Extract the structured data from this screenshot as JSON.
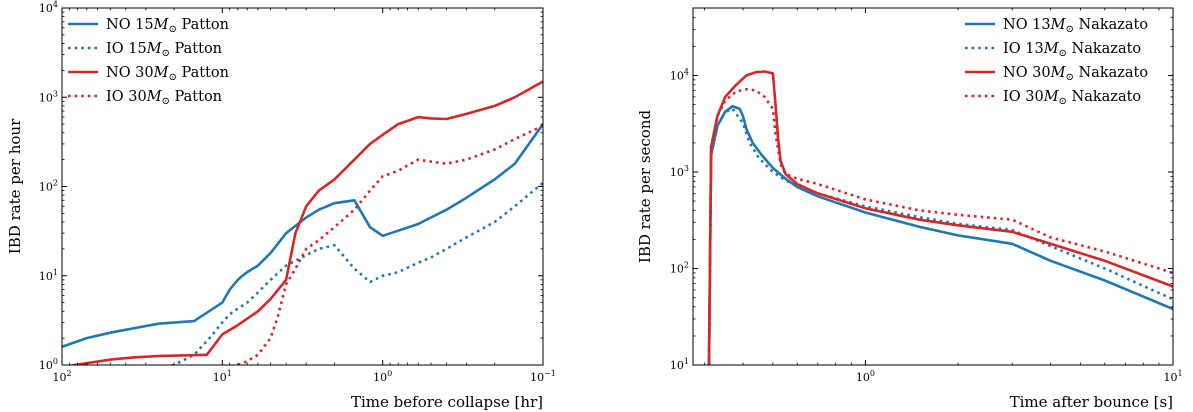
{
  "chart_data": [
    {
      "type": "line",
      "xlabel": "Time before collapse [hr]",
      "ylabel": "IBD rate per hour",
      "xscale": "log",
      "x_direction": "decreasing",
      "yscale": "log",
      "xlim": [
        100,
        0.1
      ],
      "ylim": [
        1,
        10000
      ],
      "x_ticks": [
        {
          "value": 100,
          "base": "10",
          "exp": "2"
        },
        {
          "value": 10,
          "base": "10",
          "exp": "1"
        },
        {
          "value": 1,
          "base": "10",
          "exp": "0"
        },
        {
          "value": 0.1,
          "base": "10",
          "exp": "−1"
        }
      ],
      "y_ticks": [
        {
          "value": 1,
          "base": "10",
          "exp": "0"
        },
        {
          "value": 10,
          "base": "10",
          "exp": "1"
        },
        {
          "value": 100,
          "base": "10",
          "exp": "2"
        },
        {
          "value": 1000,
          "base": "10",
          "exp": "3"
        },
        {
          "value": 10000,
          "base": "10",
          "exp": "4"
        }
      ],
      "grid": false,
      "legend_position": "top-left",
      "series": [
        {
          "label_a": "NO 15",
          "label_m": "M",
          "label_sub": "⊙",
          "label_b": " Patton",
          "color": "#1f77b4",
          "style": "solid",
          "x": [
            100,
            70,
            50,
            35,
            25,
            15,
            10,
            9,
            8,
            7.5,
            7,
            6,
            5,
            4,
            3,
            2.5,
            2,
            1.5,
            1.2,
            1,
            0.8,
            0.6,
            0.5,
            0.4,
            0.3,
            0.2,
            0.15,
            0.1
          ],
          "y": [
            1.6,
            2.0,
            2.3,
            2.6,
            2.9,
            3.1,
            5,
            7,
            9,
            10,
            11,
            13,
            18,
            30,
            45,
            55,
            65,
            70,
            35,
            28,
            32,
            38,
            45,
            55,
            75,
            120,
            180,
            500
          ]
        },
        {
          "label_a": "IO 15",
          "label_m": "M",
          "label_sub": "⊙",
          "label_b": " Patton",
          "color": "#1f77b4",
          "style": "dotted",
          "x": [
            30,
            20,
            15,
            12,
            10,
            9,
            8,
            7,
            6,
            5,
            4,
            3,
            2.5,
            2,
            1.5,
            1.2,
            1,
            0.8,
            0.6,
            0.5,
            0.4,
            0.3,
            0.2,
            0.15,
            0.1
          ],
          "y": [
            0.9,
            1.0,
            1.3,
            2.0,
            3.0,
            3.7,
            4.3,
            5.0,
            6.5,
            9,
            13,
            17,
            20,
            22,
            12,
            8.5,
            10,
            11,
            14,
            16,
            20,
            27,
            40,
            60,
            110
          ]
        },
        {
          "label_a": "NO 30",
          "label_m": "M",
          "label_sub": "⊙",
          "label_b": " Patton",
          "color": "#d62728",
          "style": "solid",
          "x": [
            100,
            70,
            50,
            35,
            25,
            18,
            12.5,
            10,
            8,
            7,
            6,
            5,
            4,
            3.5,
            3,
            2.5,
            2,
            1.5,
            1.2,
            1,
            0.8,
            0.6,
            0.5,
            0.4,
            0.3,
            0.2,
            0.15,
            0.1
          ],
          "y": [
            0.95,
            1.05,
            1.15,
            1.22,
            1.26,
            1.28,
            1.3,
            2.2,
            2.8,
            3.3,
            4.0,
            5.5,
            9,
            30,
            60,
            90,
            120,
            200,
            300,
            380,
            500,
            600,
            580,
            570,
            650,
            800,
            1000,
            1500
          ]
        },
        {
          "label_a": "IO 30",
          "label_m": "M",
          "label_sub": "⊙",
          "label_b": " Patton",
          "color": "#d62728",
          "style": "dotted",
          "x": [
            8,
            7,
            6,
            5,
            4.5,
            4,
            3.5,
            3,
            2.5,
            2,
            1.5,
            1.2,
            1,
            0.8,
            0.6,
            0.5,
            0.4,
            0.3,
            0.2,
            0.15,
            0.1
          ],
          "y": [
            1.0,
            1.1,
            1.3,
            2.0,
            3.5,
            8,
            12,
            20,
            25,
            35,
            55,
            90,
            130,
            150,
            200,
            190,
            180,
            200,
            260,
            340,
            480
          ]
        }
      ]
    },
    {
      "type": "line",
      "xlabel": "Time after bounce [s]",
      "ylabel": "IBD rate per second",
      "xscale": "log",
      "yscale": "log",
      "xlim": [
        0.275,
        10
      ],
      "ylim": [
        10,
        50000
      ],
      "x_ticks": [
        {
          "value": 1,
          "base": "10",
          "exp": "0"
        },
        {
          "value": 10,
          "base": "10",
          "exp": "1"
        }
      ],
      "y_ticks": [
        {
          "value": 10,
          "base": "10",
          "exp": "1"
        },
        {
          "value": 100,
          "base": "10",
          "exp": "2"
        },
        {
          "value": 1000,
          "base": "10",
          "exp": "3"
        },
        {
          "value": 10000,
          "base": "10",
          "exp": "4"
        }
      ],
      "grid": false,
      "legend_position": "top-right",
      "series": [
        {
          "label_a": "NO 13",
          "label_m": "M",
          "label_sub": "⊙",
          "label_b": " Nakazato",
          "color": "#1f77b4",
          "style": "solid",
          "x": [
            0.31,
            0.315,
            0.33,
            0.35,
            0.37,
            0.39,
            0.4,
            0.41,
            0.43,
            0.46,
            0.5,
            0.55,
            0.6,
            0.7,
            1.0,
            1.5,
            2.0,
            3.0,
            4.0,
            6.0,
            10.0
          ],
          "y": [
            10,
            1500,
            3000,
            4200,
            4800,
            4500,
            3800,
            2800,
            2000,
            1500,
            1100,
            850,
            700,
            560,
            380,
            270,
            220,
            180,
            120,
            75,
            38
          ]
        },
        {
          "label_a": "IO 13",
          "label_m": "M",
          "label_sub": "⊙",
          "label_b": " Nakazato",
          "color": "#1f77b4",
          "style": "dotted",
          "x": [
            0.31,
            0.315,
            0.33,
            0.35,
            0.37,
            0.4,
            0.42,
            0.45,
            0.5,
            0.55,
            0.6,
            0.7,
            1.0,
            1.5,
            2.0,
            3.0,
            4.0,
            6.0,
            10.0
          ],
          "y": [
            10,
            1500,
            3000,
            4200,
            4500,
            3200,
            2000,
            1400,
            1000,
            820,
            720,
            600,
            440,
            340,
            290,
            250,
            170,
            100,
            48
          ]
        },
        {
          "label_a": "NO 30",
          "label_m": "M",
          "label_sub": "⊙",
          "label_b": " Nakazato",
          "color": "#d62728",
          "style": "solid",
          "x": [
            0.31,
            0.315,
            0.33,
            0.35,
            0.38,
            0.41,
            0.44,
            0.47,
            0.5,
            0.51,
            0.52,
            0.53,
            0.55,
            0.6,
            0.7,
            1.0,
            1.5,
            2.0,
            3.0,
            4.0,
            6.0,
            10.0
          ],
          "y": [
            10,
            1800,
            3800,
            6000,
            8000,
            10000,
            10800,
            11000,
            10500,
            5000,
            2200,
            1300,
            950,
            750,
            600,
            420,
            320,
            280,
            240,
            180,
            120,
            65
          ]
        },
        {
          "label_a": "IO 30",
          "label_m": "M",
          "label_sub": "⊙",
          "label_b": " Nakazato",
          "color": "#d62728",
          "style": "dotted",
          "x": [
            0.31,
            0.315,
            0.33,
            0.35,
            0.38,
            0.41,
            0.44,
            0.47,
            0.5,
            0.51,
            0.53,
            0.55,
            0.6,
            0.7,
            1.0,
            1.5,
            2.0,
            3.0,
            4.0,
            6.0,
            10.0
          ],
          "y": [
            10,
            1800,
            3800,
            5500,
            6800,
            7200,
            7000,
            6000,
            4500,
            2500,
            1200,
            950,
            850,
            750,
            520,
            400,
            360,
            320,
            210,
            150,
            90
          ]
        }
      ]
    }
  ]
}
